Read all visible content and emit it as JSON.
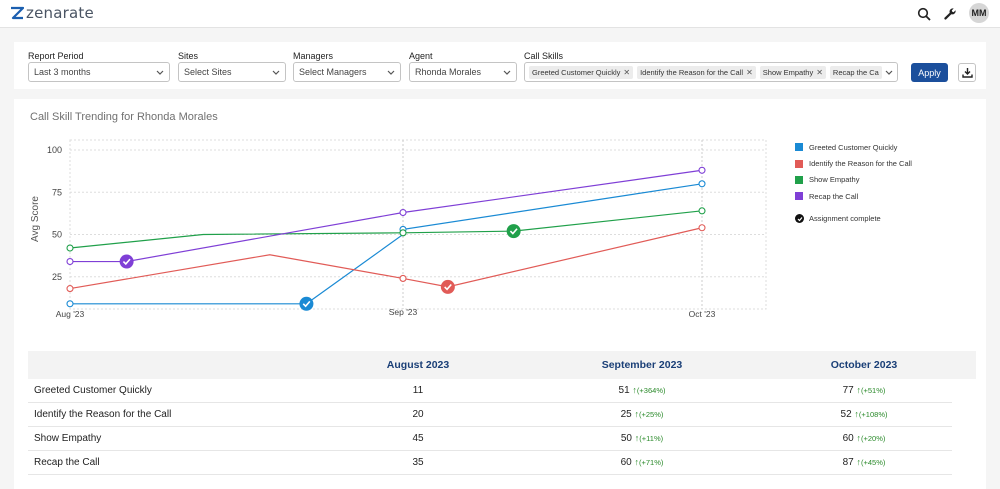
{
  "header": {
    "brand": "zenarate",
    "user_initials": "MM"
  },
  "filters": {
    "report_period": {
      "label": "Report Period",
      "value": "Last 3 months"
    },
    "sites": {
      "label": "Sites",
      "placeholder": "Select Sites"
    },
    "managers": {
      "label": "Managers",
      "placeholder": "Select Managers"
    },
    "agent": {
      "label": "Agent",
      "value": "Rhonda Morales"
    },
    "call_skills": {
      "label": "Call Skills",
      "chips": [
        "Greeted Customer Quickly",
        "Identify the Reason for the Call",
        "Show Empathy",
        "Recap the Ca"
      ]
    },
    "apply_label": "Apply"
  },
  "colors": {
    "brand_blue": "#1b4f9c",
    "greeted": "#1a8ad4",
    "identify": "#e15b57",
    "empathy": "#20a04a",
    "recap": "#7f3fd6",
    "up_green": "#2a8a2a"
  },
  "chart_data": {
    "type": "line",
    "title": "Call Skill Trending for Rhonda Morales",
    "xlabel": "",
    "ylabel": "Avg Score",
    "x_ticks": [
      "Aug '23",
      "Sep '23",
      "Oct '23"
    ],
    "y_ticks": [
      25,
      50,
      75,
      100
    ],
    "ylim": [
      0,
      100
    ],
    "grid": true,
    "legend_position": "right",
    "legend_extra": "Assignment complete",
    "series": [
      {
        "name": "Greeted Customer Quickly",
        "color": "#1a8ad4",
        "points": [
          [
            0,
            9
          ],
          [
            0.71,
            9
          ],
          [
            1.0,
            50
          ],
          [
            1.0,
            53
          ],
          [
            2.0,
            80
          ]
        ],
        "markers": [
          0,
          3,
          4
        ],
        "completion_point": 1
      },
      {
        "name": "Identify the Reason for the Call",
        "color": "#e15b57",
        "points": [
          [
            0,
            18
          ],
          [
            0.6,
            38
          ],
          [
            1.0,
            24
          ],
          [
            1.15,
            19
          ],
          [
            2.0,
            54
          ]
        ],
        "markers": [
          0,
          2,
          4
        ],
        "completion_point": 3
      },
      {
        "name": "Show Empathy",
        "color": "#20a04a",
        "points": [
          [
            0,
            42
          ],
          [
            0.4,
            50
          ],
          [
            1.0,
            51
          ],
          [
            1.37,
            52
          ],
          [
            2.0,
            64
          ]
        ],
        "markers": [
          0,
          2,
          4
        ],
        "completion_point": 3
      },
      {
        "name": "Recap the Call",
        "color": "#7f3fd6",
        "points": [
          [
            0,
            34
          ],
          [
            0.17,
            34
          ],
          [
            1.0,
            63
          ],
          [
            2.0,
            88
          ]
        ],
        "markers": [
          0,
          2,
          3
        ],
        "completion_point": 1
      }
    ]
  },
  "table": {
    "headers": [
      "",
      "August 2023",
      "September 2023",
      "October 2023"
    ],
    "rows": [
      {
        "skill": "Greeted Customer Quickly",
        "aug": "11",
        "sep": "51",
        "sep_change": "(+364%)",
        "oct": "77",
        "oct_change": "(+51%)"
      },
      {
        "skill": "Identify the Reason for the Call",
        "aug": "20",
        "sep": "25",
        "sep_change": "(+25%)",
        "oct": "52",
        "oct_change": "(+108%)"
      },
      {
        "skill": "Show Empathy",
        "aug": "45",
        "sep": "50",
        "sep_change": "(+11%)",
        "oct": "60",
        "oct_change": "(+20%)"
      },
      {
        "skill": "Recap the Call",
        "aug": "35",
        "sep": "60",
        "sep_change": "(+71%)",
        "oct": "87",
        "oct_change": "(+45%)"
      }
    ]
  }
}
